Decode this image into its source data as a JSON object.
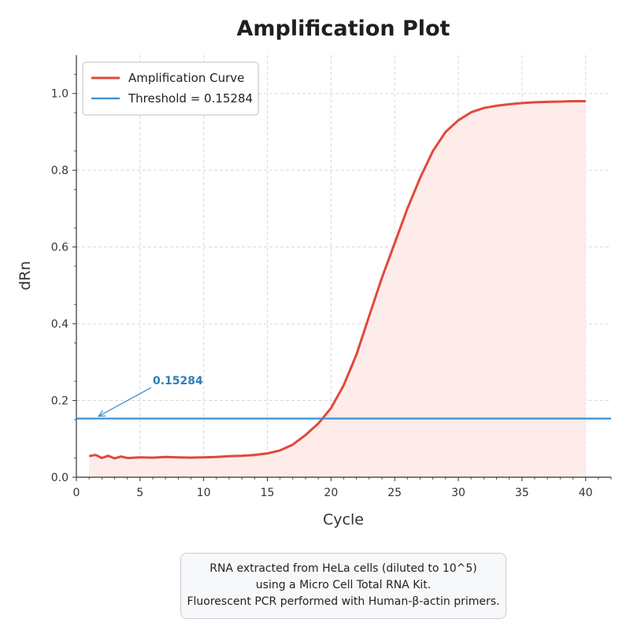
{
  "chart_data": {
    "type": "line",
    "title": "Amplification Plot",
    "xlabel": "Cycle",
    "ylabel": "dRn",
    "xlim": [
      0,
      42
    ],
    "ylim": [
      0,
      1.1
    ],
    "xticks": [
      0,
      5,
      10,
      15,
      20,
      25,
      30,
      35,
      40
    ],
    "yticks": [
      0.0,
      0.2,
      0.4,
      0.6,
      0.8,
      1.0
    ],
    "grid": true,
    "legend_position": "top-left",
    "series": [
      {
        "name": "Amplification Curve",
        "color": "#e0493a",
        "fill": "#fdecea",
        "x": [
          1,
          1.5,
          2,
          2.5,
          3,
          3.5,
          4,
          5,
          6,
          7,
          8,
          9,
          10,
          11,
          12,
          13,
          14,
          15,
          16,
          17,
          18,
          19,
          20,
          21,
          22,
          23,
          24,
          25,
          26,
          27,
          28,
          29,
          30,
          31,
          32,
          33,
          34,
          35,
          36,
          37,
          38,
          39,
          40
        ],
        "y": [
          0.055,
          0.058,
          0.05,
          0.056,
          0.049,
          0.054,
          0.05,
          0.052,
          0.051,
          0.053,
          0.052,
          0.051,
          0.052,
          0.053,
          0.055,
          0.056,
          0.058,
          0.062,
          0.07,
          0.085,
          0.11,
          0.14,
          0.18,
          0.24,
          0.32,
          0.42,
          0.52,
          0.61,
          0.7,
          0.78,
          0.85,
          0.9,
          0.93,
          0.951,
          0.962,
          0.968,
          0.972,
          0.975,
          0.977,
          0.978,
          0.979,
          0.98,
          0.98
        ]
      },
      {
        "name": "Threshold = 0.15284",
        "color": "#3a8fd0",
        "y_const": 0.15284
      }
    ],
    "annotation": {
      "text": "0.15284",
      "x": 1.5,
      "y": 0.15284,
      "text_x": 6,
      "text_y": 0.25
    }
  },
  "caption": {
    "lines": [
      "RNA extracted from HeLa cells (diluted to 10^5)",
      "using a Micro Cell Total RNA Kit.",
      "Fluorescent PCR performed with Human-β-actin primers."
    ]
  }
}
